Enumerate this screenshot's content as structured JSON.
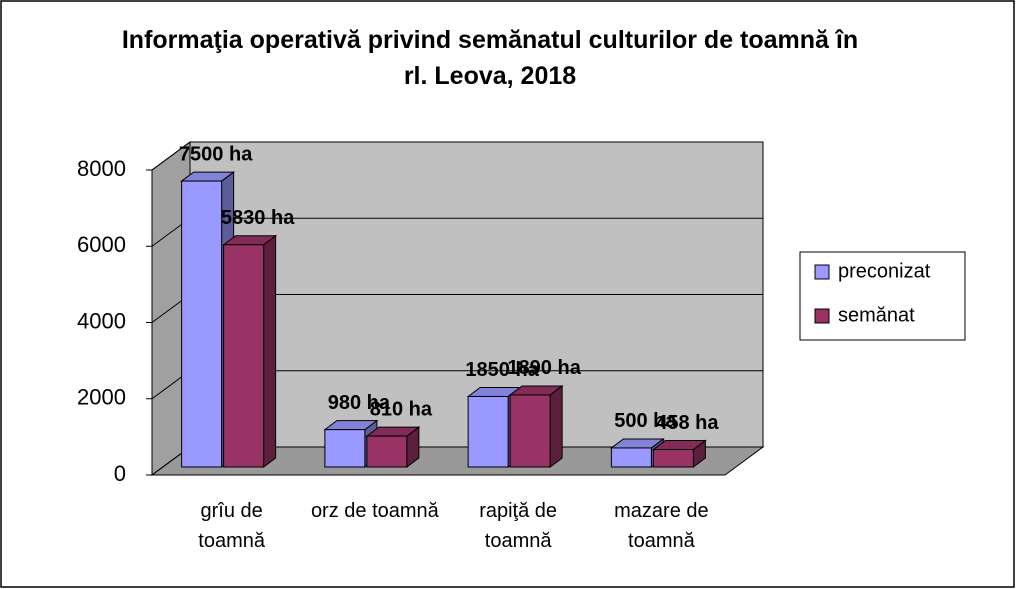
{
  "chart_data": {
    "type": "bar3d",
    "title": "Informaţia operativă privind semănatul culturilor de toamnă în rl. Leova, 2018",
    "categories": [
      "grîu de toamnă",
      "orz de toamnă",
      "rapiţă de toamnă",
      "mazare de toamnă"
    ],
    "series": [
      {
        "name": "preconizat",
        "color": "#9999ff",
        "values": [
          7500,
          980,
          1850,
          500
        ],
        "value_labels": [
          "7500 ha",
          "980 ha",
          "1850 ha",
          "500 ha"
        ]
      },
      {
        "name": "semănat",
        "color": "#993366",
        "values": [
          5830,
          810,
          1890,
          458
        ],
        "value_labels": [
          "5830 ha",
          "810 ha",
          "1890 ha",
          "458 ha"
        ]
      }
    ],
    "ylim": [
      0,
      8000
    ],
    "yticks": [
      0,
      2000,
      4000,
      6000,
      8000
    ],
    "grid": true,
    "legend": "right"
  }
}
